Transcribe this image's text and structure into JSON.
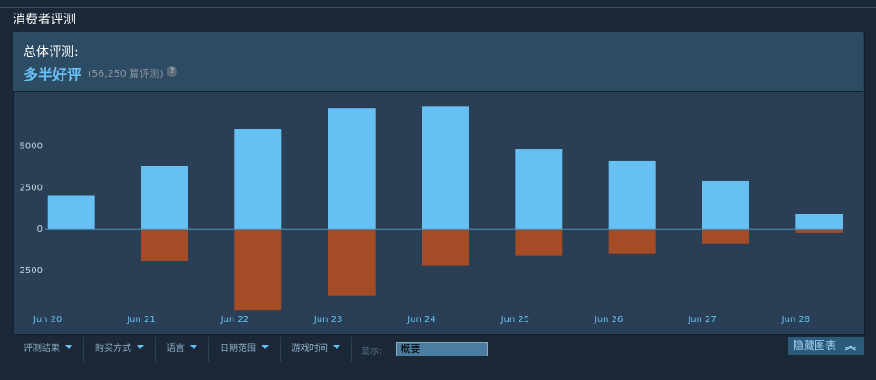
{
  "header": {
    "title": "消费者评测"
  },
  "summary": {
    "label": "总体评测:",
    "rating": "多半好评",
    "count": "(56,250 篇评测)",
    "help": "?"
  },
  "chart_data": {
    "type": "bar",
    "categories": [
      "Jun 20",
      "Jun 21",
      "Jun 22",
      "Jun 23",
      "Jun 24",
      "Jun 25",
      "Jun 26",
      "Jun 27",
      "Jun 28"
    ],
    "series": [
      {
        "color": "#66c0f4",
        "values": [
          2000,
          3800,
          6000,
          7300,
          7400,
          4800,
          4100,
          2900,
          900
        ]
      },
      {
        "color": "#a34c25",
        "values": [
          0,
          -1900,
          -4900,
          -4000,
          -2200,
          -1600,
          -1500,
          -900,
          -200
        ]
      }
    ],
    "ylim": [
      -5000,
      7800
    ],
    "yticks": [
      5000,
      2500,
      0,
      {
        "value": -2500,
        "label": "2500"
      }
    ]
  },
  "filters": {
    "items": [
      "评测结果",
      "购买方式",
      "语言",
      "日期范围",
      "游戏时间"
    ],
    "display_label": "显示:",
    "display_value": "概要",
    "hide_button": "隐藏图表"
  }
}
